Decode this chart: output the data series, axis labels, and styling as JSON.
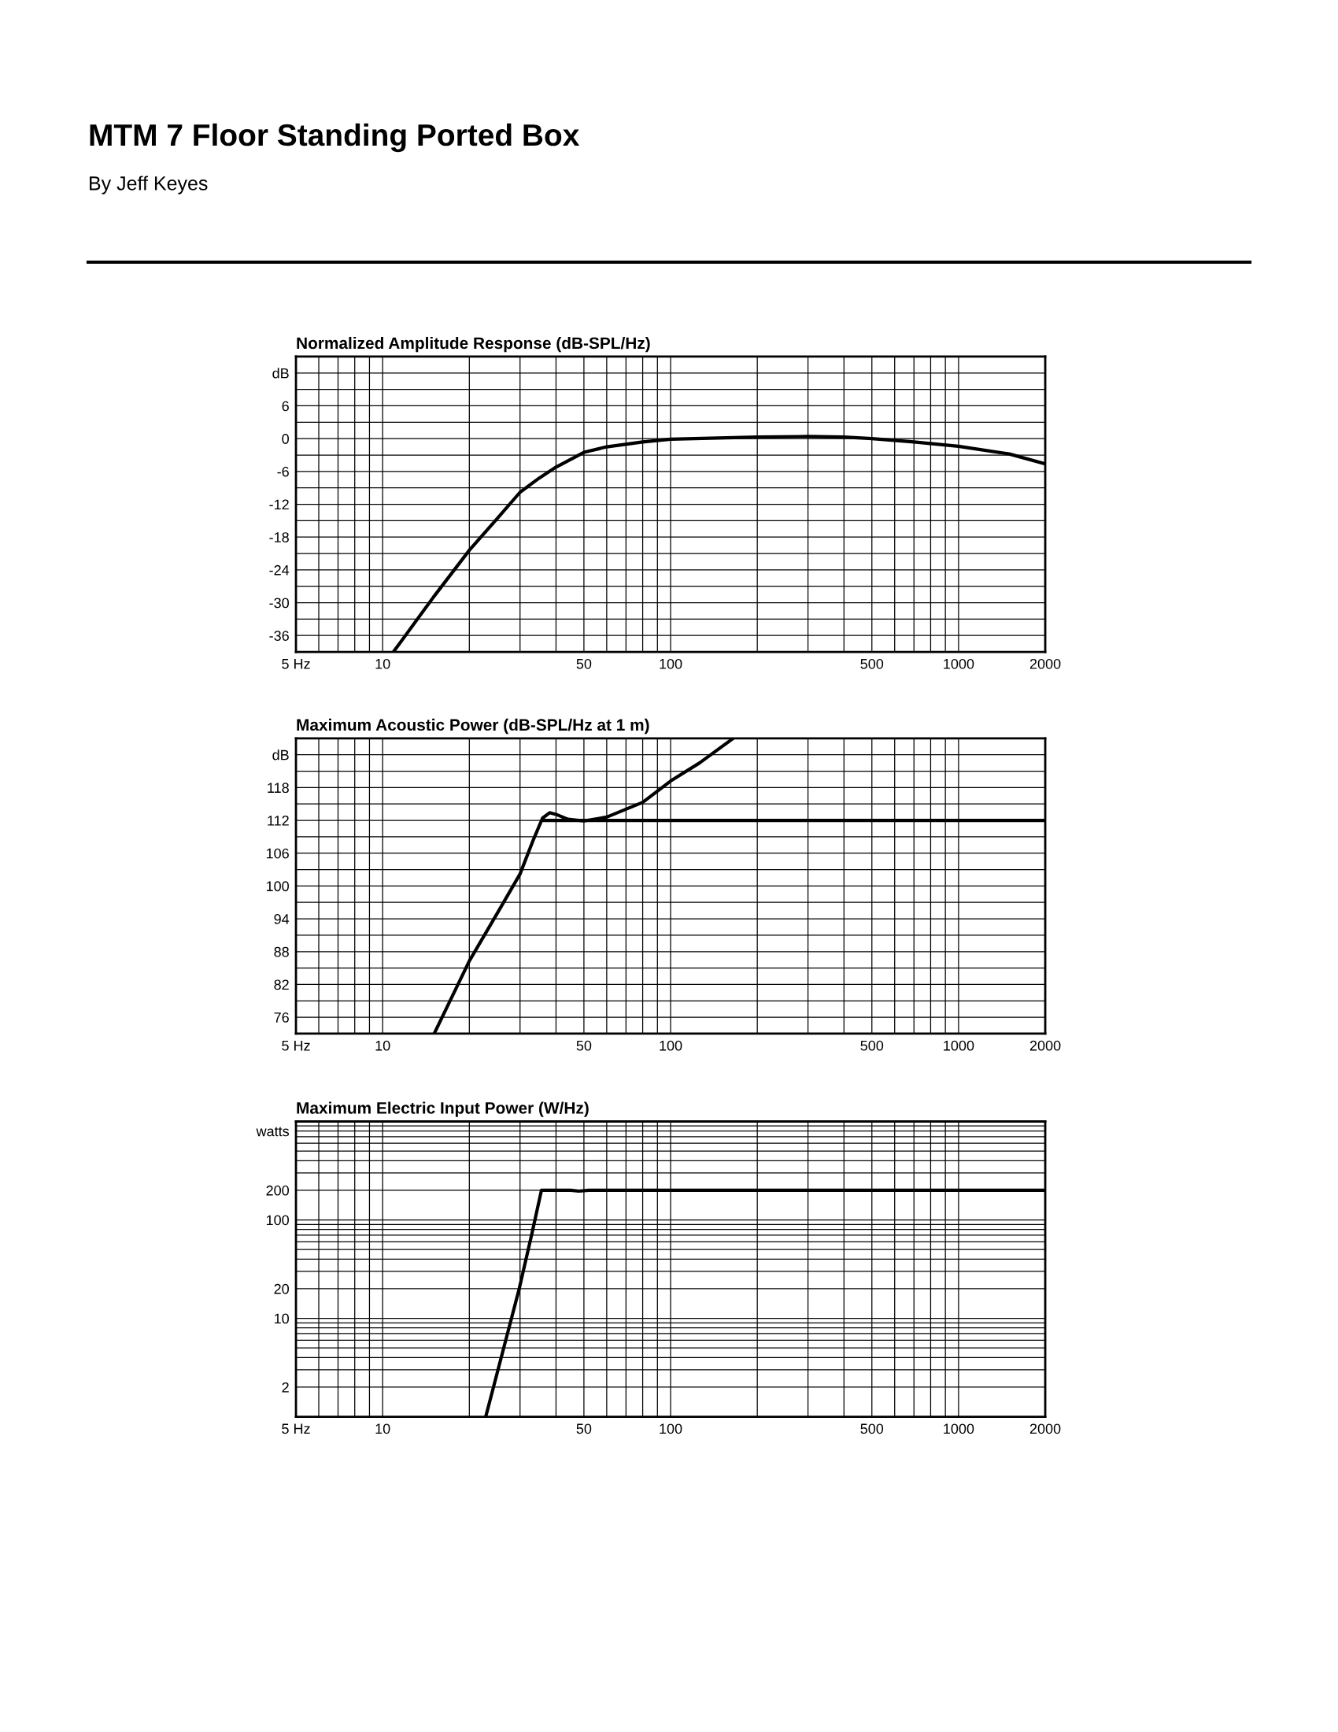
{
  "chart_data": [
    {
      "type": "line",
      "title": "Normalized Amplitude Response (dB-SPL/Hz)",
      "annotations": [
        "MTM 7 Floor Standing Ported Box",
        "By Jeff Keyes"
      ],
      "log": "x",
      "grid": true,
      "xlim": [
        5,
        2000
      ],
      "ylim": [
        -39,
        15
      ],
      "xticks": [
        {
          "value": 5,
          "label": "5 Hz"
        },
        {
          "value": 6,
          "label": null
        },
        {
          "value": 7,
          "label": null
        },
        {
          "value": 8,
          "label": null
        },
        {
          "value": 9,
          "label": null
        },
        10,
        {
          "value": 20,
          "label": null
        },
        {
          "value": 30,
          "label": null
        },
        {
          "value": 40,
          "label": null
        },
        50,
        {
          "value": 60,
          "label": null
        },
        {
          "value": 70,
          "label": null
        },
        {
          "value": 80,
          "label": null
        },
        {
          "value": 90,
          "label": null
        },
        100,
        {
          "value": 200,
          "label": null
        },
        {
          "value": 300,
          "label": null
        },
        {
          "value": 400,
          "label": null
        },
        500,
        {
          "value": 600,
          "label": null
        },
        {
          "value": 700,
          "label": null
        },
        {
          "value": 800,
          "label": null
        },
        {
          "value": 900,
          "label": null
        },
        1000,
        2000
      ],
      "yticks": [
        -36,
        {
          "value": -33,
          "label": null
        },
        -30,
        {
          "value": -27,
          "label": null
        },
        -24,
        {
          "value": -21,
          "label": null
        },
        -18,
        {
          "value": -15,
          "label": null
        },
        -12,
        {
          "value": -9,
          "label": null
        },
        -6,
        {
          "value": -3,
          "label": null
        },
        0,
        {
          "value": 3,
          "label": null
        },
        6,
        {
          "value": 9,
          "label": null
        },
        {
          "value": 12,
          "label": "dB"
        }
      ],
      "series": [
        {
          "color": "#000000",
          "x": [
            10.9,
            15,
            20,
            25,
            30,
            35,
            40,
            50,
            60,
            80,
            100,
            200,
            300,
            400,
            500,
            700,
            1000,
            1500,
            2000
          ],
          "values": [
            -39,
            -29,
            -20.4,
            -14.6,
            -9.8,
            -7.2,
            -5.2,
            -2.5,
            -1.5,
            -0.6,
            -0.1,
            0.3,
            0.4,
            0.3,
            0,
            -0.6,
            -1.4,
            -2.8,
            -4.6
          ]
        }
      ]
    },
    {
      "type": "line",
      "title": "Maximum Acoustic Power (dB-SPL/Hz at 1 m)",
      "log": "x",
      "grid": true,
      "xlim": [
        5,
        2000
      ],
      "ylim": [
        73,
        127
      ],
      "xticks": [
        {
          "value": 5,
          "label": "5 Hz"
        },
        {
          "value": 6,
          "label": null
        },
        {
          "value": 7,
          "label": null
        },
        {
          "value": 8,
          "label": null
        },
        {
          "value": 9,
          "label": null
        },
        10,
        {
          "value": 20,
          "label": null
        },
        {
          "value": 30,
          "label": null
        },
        {
          "value": 40,
          "label": null
        },
        50,
        {
          "value": 60,
          "label": null
        },
        {
          "value": 70,
          "label": null
        },
        {
          "value": 80,
          "label": null
        },
        {
          "value": 90,
          "label": null
        },
        100,
        {
          "value": 200,
          "label": null
        },
        {
          "value": 300,
          "label": null
        },
        {
          "value": 400,
          "label": null
        },
        500,
        {
          "value": 600,
          "label": null
        },
        {
          "value": 700,
          "label": null
        },
        {
          "value": 800,
          "label": null
        },
        {
          "value": 900,
          "label": null
        },
        1000,
        2000
      ],
      "yticks": [
        76,
        {
          "value": 79,
          "label": null
        },
        82,
        {
          "value": 85,
          "label": null
        },
        88,
        {
          "value": 91,
          "label": null
        },
        94,
        {
          "value": 97,
          "label": null
        },
        100,
        {
          "value": 103,
          "label": null
        },
        106,
        {
          "value": 109,
          "label": null
        },
        112,
        {
          "value": 115,
          "label": null
        },
        118,
        {
          "value": 121,
          "label": null
        },
        {
          "value": 124,
          "label": "dB"
        }
      ],
      "series": [
        {
          "color": "#000000",
          "x": [
            15.1,
            20,
            25,
            30,
            33.4,
            35.9,
            38,
            40,
            44,
            50,
            60,
            80,
            100,
            126,
            165
          ],
          "values": [
            73,
            86.3,
            95,
            102.2,
            108.5,
            112.4,
            113.4,
            113.1,
            112.2,
            111.9,
            112.6,
            115.3,
            119.2,
            122.5,
            127
          ]
        },
        {
          "color": "#000000",
          "x": [
            36,
            2000
          ],
          "values": [
            112,
            112
          ]
        }
      ]
    },
    {
      "type": "line",
      "title": "Maximum Electric Input Power (W/Hz)",
      "log": "xy",
      "grid": true,
      "xlim": [
        5,
        2000
      ],
      "ylim": [
        1,
        1000
      ],
      "xticks": [
        {
          "value": 5,
          "label": "5 Hz"
        },
        {
          "value": 6,
          "label": null
        },
        {
          "value": 7,
          "label": null
        },
        {
          "value": 8,
          "label": null
        },
        {
          "value": 9,
          "label": null
        },
        10,
        {
          "value": 20,
          "label": null
        },
        {
          "value": 30,
          "label": null
        },
        {
          "value": 40,
          "label": null
        },
        50,
        {
          "value": 60,
          "label": null
        },
        {
          "value": 70,
          "label": null
        },
        {
          "value": 80,
          "label": null
        },
        {
          "value": 90,
          "label": null
        },
        100,
        {
          "value": 200,
          "label": null
        },
        {
          "value": 300,
          "label": null
        },
        {
          "value": 400,
          "label": null
        },
        500,
        {
          "value": 600,
          "label": null
        },
        {
          "value": 700,
          "label": null
        },
        {
          "value": 800,
          "label": null
        },
        {
          "value": 900,
          "label": null
        },
        1000,
        2000
      ],
      "yticks": [
        2,
        {
          "value": 3,
          "label": null
        },
        {
          "value": 4,
          "label": null
        },
        {
          "value": 5,
          "label": null
        },
        {
          "value": 6,
          "label": null
        },
        {
          "value": 7,
          "label": null
        },
        {
          "value": 8,
          "label": null
        },
        {
          "value": 9,
          "label": null
        },
        10,
        20,
        {
          "value": 30,
          "label": null
        },
        {
          "value": 40,
          "label": null
        },
        {
          "value": 50,
          "label": null
        },
        {
          "value": 60,
          "label": null
        },
        {
          "value": 70,
          "label": null
        },
        {
          "value": 80,
          "label": null
        },
        {
          "value": 90,
          "label": null
        },
        100,
        200,
        {
          "value": 300,
          "label": null
        },
        {
          "value": 400,
          "label": null
        },
        {
          "value": 500,
          "label": null
        },
        {
          "value": 600,
          "label": null
        },
        {
          "value": 700,
          "label": null
        },
        {
          "value": 800,
          "label": "watts"
        },
        {
          "value": 900,
          "label": null
        }
      ],
      "series": [
        {
          "color": "#000000",
          "x": [
            22.8,
            29.8,
            33.1,
            35.6,
            45,
            48,
            52,
            2000
          ],
          "values": [
            1,
            20,
            76,
            200,
            200,
            196,
            200,
            200
          ]
        }
      ]
    }
  ]
}
